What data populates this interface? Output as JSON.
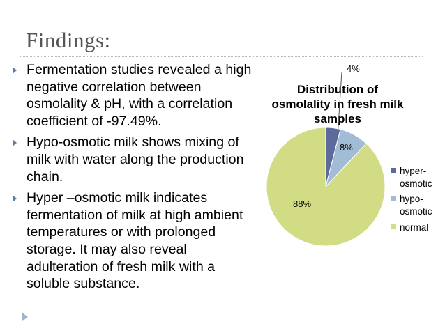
{
  "slide": {
    "title": "Findings:",
    "bullets": [
      "Fermentation studies revealed a high negative correlation between osmolality & pH, with a correlation coefficient of -97.49%.",
      "Hypo-osmotic milk shows mixing of milk with water along the production chain.",
      "Hyper –osmotic milk indicates fermentation of milk at high ambient temperatures or with prolonged storage. It may also reveal adulteration of fresh milk with a soluble substance."
    ]
  },
  "chart_data": {
    "type": "pie",
    "title_lines": [
      "Distribution of",
      "osmolality in fresh milk",
      "samples"
    ],
    "categories": [
      "hyper-osmotic",
      "hypo-osmotic",
      "normal"
    ],
    "values": [
      4,
      8,
      88
    ],
    "data_labels": [
      "4%",
      "8%",
      "88%"
    ],
    "legend_lines": [
      [
        "hyper-",
        "osmotic"
      ],
      [
        "hypo-",
        "osmotic"
      ],
      [
        "normal"
      ]
    ],
    "colors": [
      "#5c6b9b",
      "#a2bcd6",
      "#d2dc84"
    ],
    "legend_position": "right"
  }
}
